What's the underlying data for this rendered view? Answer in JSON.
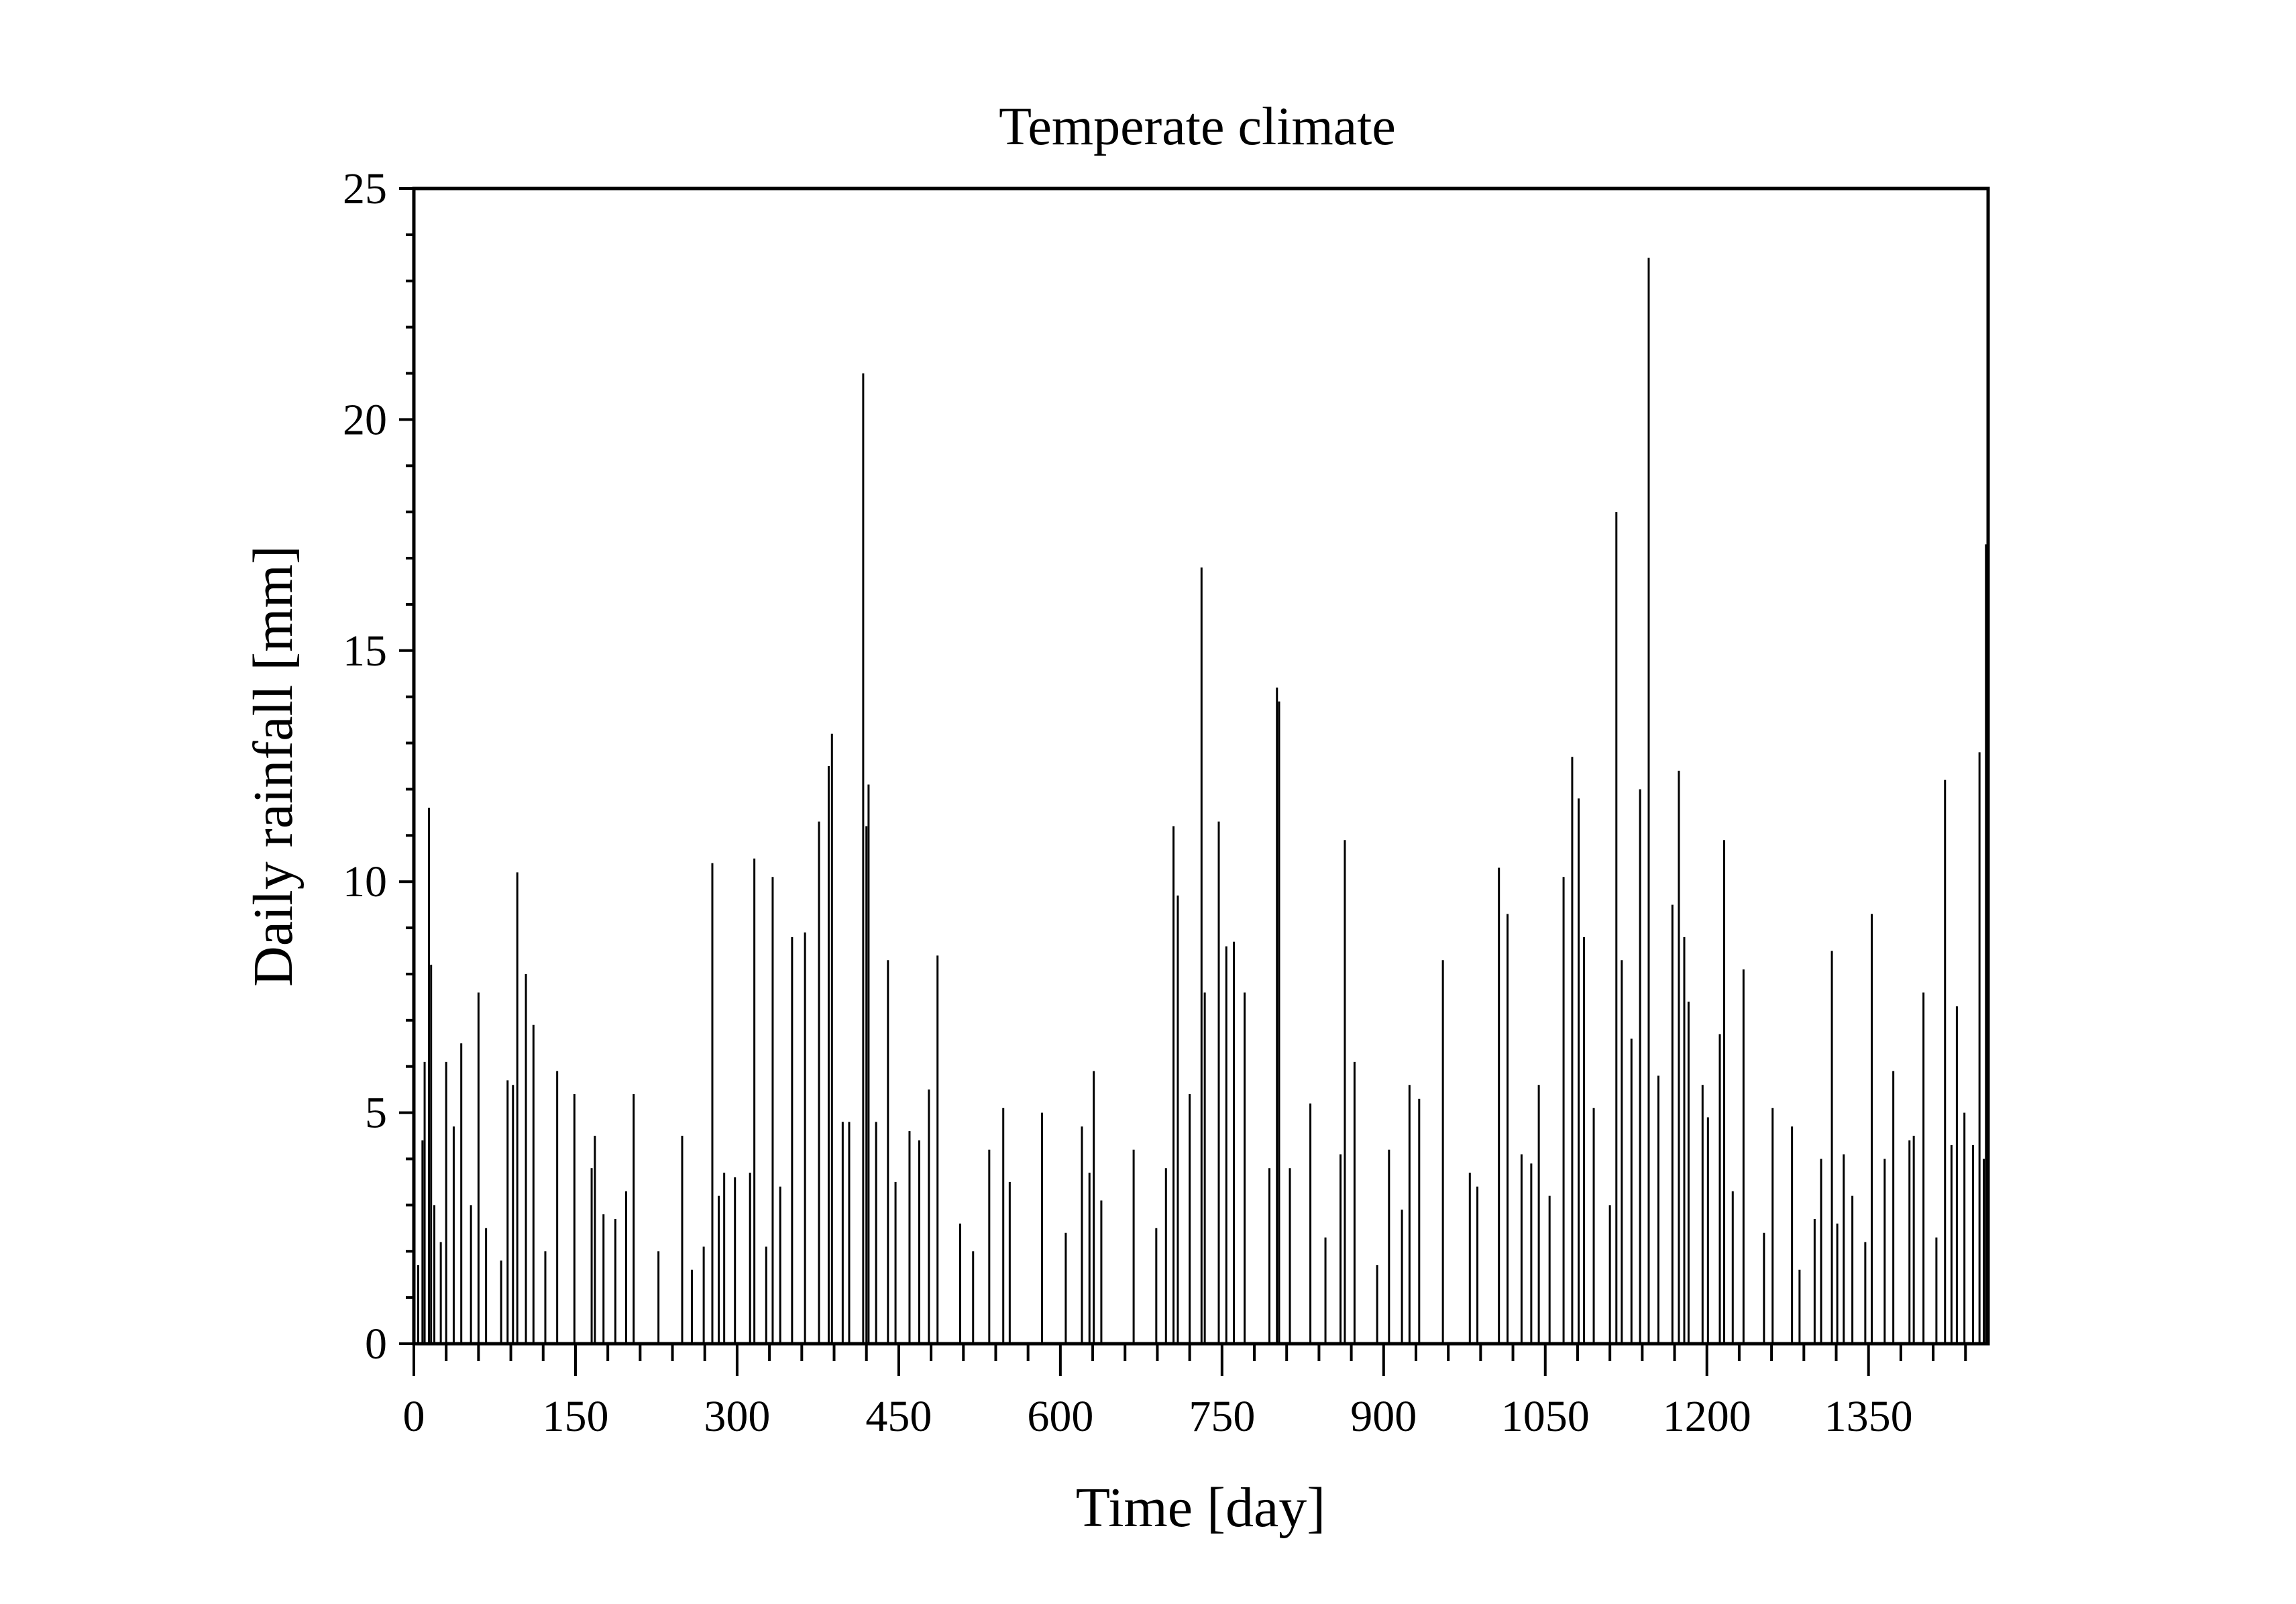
{
  "chart_data": {
    "type": "bar",
    "title": "Temperate climate",
    "xlabel": "Time [day]",
    "ylabel": "Daily rainfall [mm]",
    "xlim": [
      0,
      1461
    ],
    "ylim": [
      0,
      25
    ],
    "xticks": [
      0,
      150,
      300,
      450,
      600,
      750,
      900,
      1050,
      1200,
      1350
    ],
    "yticks": [
      0,
      5,
      10,
      15,
      20,
      25
    ],
    "grid": false,
    "legend": "none",
    "color": "#000000",
    "x": [
      4,
      8,
      10,
      14,
      16,
      19,
      25,
      30,
      37,
      44,
      53,
      60,
      67,
      81,
      87,
      92,
      96,
      104,
      111,
      122,
      133,
      149,
      165,
      168,
      176,
      187,
      197,
      204,
      227,
      249,
      258,
      269,
      277,
      283,
      288,
      298,
      312,
      316,
      327,
      333,
      340,
      351,
      363,
      376,
      385,
      388,
      398,
      404,
      417,
      420,
      422,
      429,
      440,
      447,
      460,
      469,
      478,
      486,
      507,
      519,
      534,
      547,
      553,
      583,
      605,
      620,
      627,
      631,
      638,
      668,
      689,
      698,
      705,
      709,
      720,
      731,
      734,
      747,
      754,
      761,
      771,
      794,
      801,
      803,
      813,
      832,
      846,
      860,
      864,
      873,
      894,
      905,
      917,
      924,
      933,
      955,
      980,
      987,
      1007,
      1015,
      1028,
      1037,
      1044,
      1054,
      1067,
      1075,
      1081,
      1086,
      1095,
      1110,
      1116,
      1121,
      1130,
      1138,
      1146,
      1155,
      1168,
      1174,
      1179,
      1183,
      1196,
      1201,
      1212,
      1216,
      1224,
      1234,
      1253,
      1261,
      1279,
      1286,
      1300,
      1306,
      1316,
      1321,
      1327,
      1335,
      1347,
      1353,
      1365,
      1373,
      1388,
      1392,
      1401,
      1413,
      1421,
      1427,
      1432,
      1439,
      1447,
      1453,
      1457,
      1459
    ],
    "values": [
      1.7,
      4.4,
      6.1,
      11.6,
      8.2,
      3.0,
      2.2,
      6.1,
      4.7,
      6.5,
      3.0,
      7.6,
      2.5,
      1.8,
      5.7,
      5.6,
      10.2,
      8.0,
      6.9,
      2.0,
      5.9,
      5.4,
      3.8,
      4.5,
      2.8,
      2.7,
      3.3,
      5.4,
      2.0,
      4.5,
      1.6,
      2.1,
      10.4,
      3.2,
      3.7,
      3.6,
      3.7,
      10.5,
      2.1,
      10.1,
      3.4,
      8.8,
      8.9,
      11.3,
      12.5,
      13.2,
      4.8,
      4.8,
      21.0,
      11.2,
      12.1,
      4.8,
      8.3,
      3.5,
      4.6,
      4.4,
      5.5,
      8.4,
      2.6,
      2.0,
      4.2,
      5.1,
      3.5,
      5.0,
      2.4,
      4.7,
      3.7,
      5.9,
      3.1,
      4.2,
      2.5,
      3.8,
      11.2,
      9.7,
      5.4,
      16.8,
      7.6,
      11.3,
      8.6,
      8.7,
      7.6,
      3.8,
      14.2,
      13.9,
      3.8,
      5.2,
      2.3,
      4.1,
      10.9,
      6.1,
      1.7,
      4.2,
      2.9,
      5.6,
      5.3,
      8.3,
      3.7,
      3.4,
      10.3,
      9.3,
      4.1,
      3.9,
      5.6,
      3.2,
      10.1,
      12.7,
      11.8,
      8.8,
      5.1,
      3.0,
      18.0,
      8.3,
      6.6,
      12.0,
      23.5,
      5.8,
      9.5,
      12.4,
      8.8,
      7.4,
      5.6,
      4.9,
      6.7,
      10.9,
      3.3,
      8.1,
      2.4,
      5.1,
      4.7,
      1.6,
      2.7,
      4.0,
      8.5,
      2.6,
      4.1,
      3.2,
      2.2,
      9.3,
      4.0,
      5.9,
      4.4,
      4.5,
      7.6,
      2.3,
      12.2,
      4.3,
      7.3,
      5.0,
      4.3,
      12.8,
      4.0,
      17.3
    ]
  }
}
